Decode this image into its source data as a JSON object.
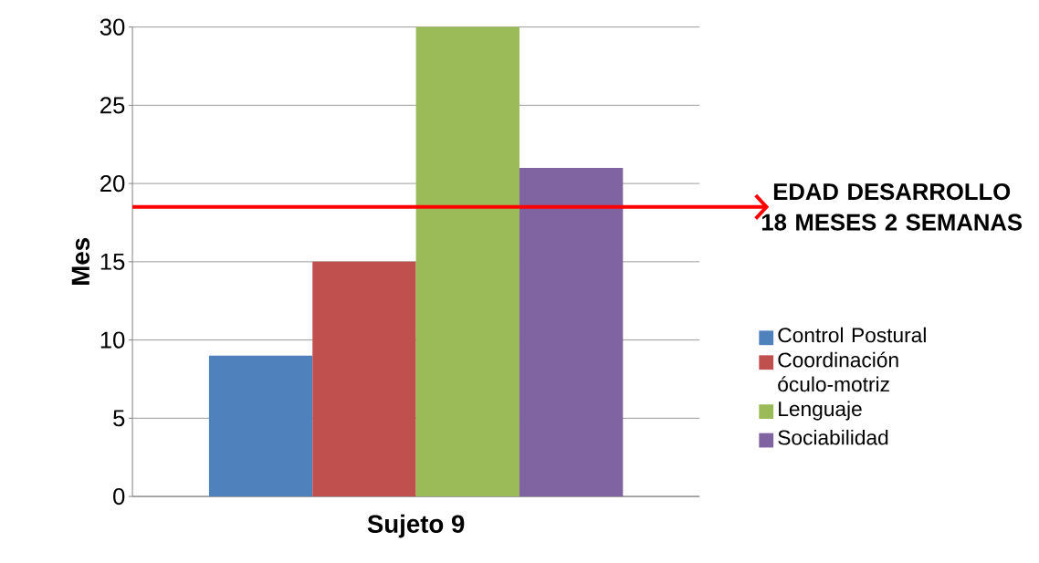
{
  "chart_data": {
    "type": "bar",
    "categories": [
      "Sujeto 9"
    ],
    "series": [
      {
        "name": "Control Postural",
        "color": "#4f81bd",
        "values": [
          9
        ]
      },
      {
        "name": "Coordinación óculo-motriz",
        "color": "#c0504d",
        "values": [
          15
        ]
      },
      {
        "name": "Lenguaje",
        "color": "#9bbb59",
        "values": [
          30
        ]
      },
      {
        "name": "Sociabilidad",
        "color": "#8064a2",
        "values": [
          21
        ]
      }
    ],
    "ylabel": "Mes",
    "ylim": [
      0,
      30
    ],
    "yticks": [
      0,
      5,
      10,
      15,
      20,
      25,
      30
    ],
    "grid": "y",
    "legend": "right",
    "ref_lines": [
      {
        "axis": "y",
        "value": 18.5,
        "label": "EDAD DESARROLLO 18 MESES 2 SEMANAS",
        "color": "#ff0000"
      }
    ]
  }
}
